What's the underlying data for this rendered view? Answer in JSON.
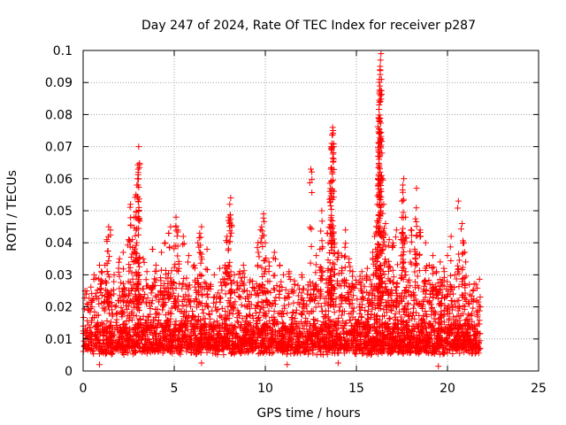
{
  "chart_data": {
    "type": "scatter",
    "title": "Day 247 of 2024, Rate Of TEC Index for receiver p287",
    "xlabel": "GPS time / hours",
    "ylabel": "ROTI / TECUs",
    "xlim": [
      0,
      25
    ],
    "ylim": [
      0,
      0.1
    ],
    "grid": true,
    "marker": "+",
    "color": "#ff0000",
    "xticks": [
      "0",
      "5",
      "10",
      "15",
      "20",
      "25"
    ],
    "yticks": [
      "0",
      "0.01",
      "0.02",
      "0.03",
      "0.04",
      "0.05",
      "0.06",
      "0.07",
      "0.08",
      "0.09",
      "0.1"
    ],
    "x_data_range": [
      0,
      21.8
    ],
    "series": [
      {
        "points": [
          [
            0.1,
            0.025
          ],
          [
            0.2,
            0.021
          ],
          [
            0.5,
            0.022
          ],
          [
            0.6,
            0.03
          ],
          [
            0.7,
            0.029
          ],
          [
            0.9,
            0.033
          ],
          [
            1.0,
            0.031
          ],
          [
            1.2,
            0.033
          ],
          [
            1.3,
            0.041
          ],
          [
            1.4,
            0.045
          ],
          [
            1.5,
            0.044
          ],
          [
            1.7,
            0.03
          ],
          [
            2.0,
            0.035
          ],
          [
            2.2,
            0.037
          ],
          [
            2.5,
            0.041
          ],
          [
            2.6,
            0.052
          ],
          [
            2.7,
            0.041
          ],
          [
            2.8,
            0.048
          ],
          [
            2.9,
            0.055
          ],
          [
            2.95,
            0.058
          ],
          [
            3.0,
            0.06
          ],
          [
            3.02,
            0.063
          ],
          [
            3.05,
            0.07
          ],
          [
            3.3,
            0.035
          ],
          [
            3.5,
            0.031
          ],
          [
            3.8,
            0.038
          ],
          [
            4.0,
            0.033
          ],
          [
            4.3,
            0.037
          ],
          [
            4.5,
            0.04
          ],
          [
            4.7,
            0.043
          ],
          [
            4.8,
            0.045
          ],
          [
            5.0,
            0.039
          ],
          [
            5.1,
            0.048
          ],
          [
            5.2,
            0.044
          ],
          [
            5.5,
            0.042
          ],
          [
            5.8,
            0.036
          ],
          [
            6.1,
            0.033
          ],
          [
            6.3,
            0.04
          ],
          [
            6.4,
            0.043
          ],
          [
            6.5,
            0.045
          ],
          [
            6.8,
            0.038
          ],
          [
            7.0,
            0.027
          ],
          [
            7.2,
            0.03
          ],
          [
            7.5,
            0.032
          ],
          [
            7.8,
            0.033
          ],
          [
            7.9,
            0.042
          ],
          [
            8.0,
            0.048
          ],
          [
            8.05,
            0.052
          ],
          [
            8.1,
            0.054
          ],
          [
            8.3,
            0.03
          ],
          [
            8.6,
            0.031
          ],
          [
            8.8,
            0.033
          ],
          [
            9.0,
            0.025
          ],
          [
            9.3,
            0.028
          ],
          [
            9.6,
            0.04
          ],
          [
            9.8,
            0.045
          ],
          [
            9.9,
            0.049
          ],
          [
            10.0,
            0.04
          ],
          [
            10.2,
            0.034
          ],
          [
            10.5,
            0.037
          ],
          [
            10.8,
            0.033
          ],
          [
            11.0,
            0.03
          ],
          [
            11.3,
            0.031
          ],
          [
            11.6,
            0.027
          ],
          [
            12.0,
            0.03
          ],
          [
            12.3,
            0.024
          ],
          [
            12.5,
            0.063
          ],
          [
            12.8,
            0.036
          ],
          [
            13.0,
            0.038
          ],
          [
            13.1,
            0.05
          ],
          [
            13.4,
            0.043
          ],
          [
            13.5,
            0.045
          ],
          [
            13.55,
            0.056
          ],
          [
            13.6,
            0.063
          ],
          [
            13.62,
            0.07
          ],
          [
            13.65,
            0.071
          ],
          [
            13.7,
            0.076
          ],
          [
            13.72,
            0.075
          ],
          [
            13.8,
            0.04
          ],
          [
            14.0,
            0.037
          ],
          [
            14.2,
            0.036
          ],
          [
            14.4,
            0.044
          ],
          [
            14.6,
            0.035
          ],
          [
            14.8,
            0.031
          ],
          [
            15.0,
            0.027
          ],
          [
            15.3,
            0.031
          ],
          [
            15.6,
            0.032
          ],
          [
            15.9,
            0.037
          ],
          [
            16.0,
            0.042
          ],
          [
            16.1,
            0.045
          ],
          [
            16.15,
            0.052
          ],
          [
            16.2,
            0.067
          ],
          [
            16.22,
            0.079
          ],
          [
            16.25,
            0.083
          ],
          [
            16.27,
            0.087
          ],
          [
            16.3,
            0.094
          ],
          [
            16.32,
            0.097
          ],
          [
            16.35,
            0.099
          ],
          [
            16.4,
            0.06
          ],
          [
            16.5,
            0.052
          ],
          [
            16.6,
            0.046
          ],
          [
            16.8,
            0.041
          ],
          [
            17.0,
            0.04
          ],
          [
            17.2,
            0.044
          ],
          [
            17.5,
            0.053
          ],
          [
            17.55,
            0.058
          ],
          [
            17.6,
            0.06
          ],
          [
            17.7,
            0.048
          ],
          [
            18.0,
            0.044
          ],
          [
            18.2,
            0.038
          ],
          [
            18.3,
            0.057
          ],
          [
            18.5,
            0.044
          ],
          [
            18.8,
            0.04
          ],
          [
            19.0,
            0.033
          ],
          [
            19.2,
            0.036
          ],
          [
            19.4,
            0.031
          ],
          [
            19.6,
            0.034
          ],
          [
            19.8,
            0.032
          ],
          [
            20.0,
            0.036
          ],
          [
            20.2,
            0.042
          ],
          [
            20.4,
            0.03
          ],
          [
            20.6,
            0.053
          ],
          [
            20.8,
            0.046
          ],
          [
            20.9,
            0.04
          ],
          [
            21.0,
            0.034
          ],
          [
            21.2,
            0.027
          ],
          [
            21.4,
            0.025
          ],
          [
            21.6,
            0.022
          ],
          [
            21.8,
            0.02
          ],
          [
            19.5,
            0.0015
          ],
          [
            6.5,
            0.0025
          ],
          [
            0.9,
            0.002
          ],
          [
            11.2,
            0.002
          ],
          [
            14.0,
            0.0025
          ]
        ]
      }
    ]
  }
}
